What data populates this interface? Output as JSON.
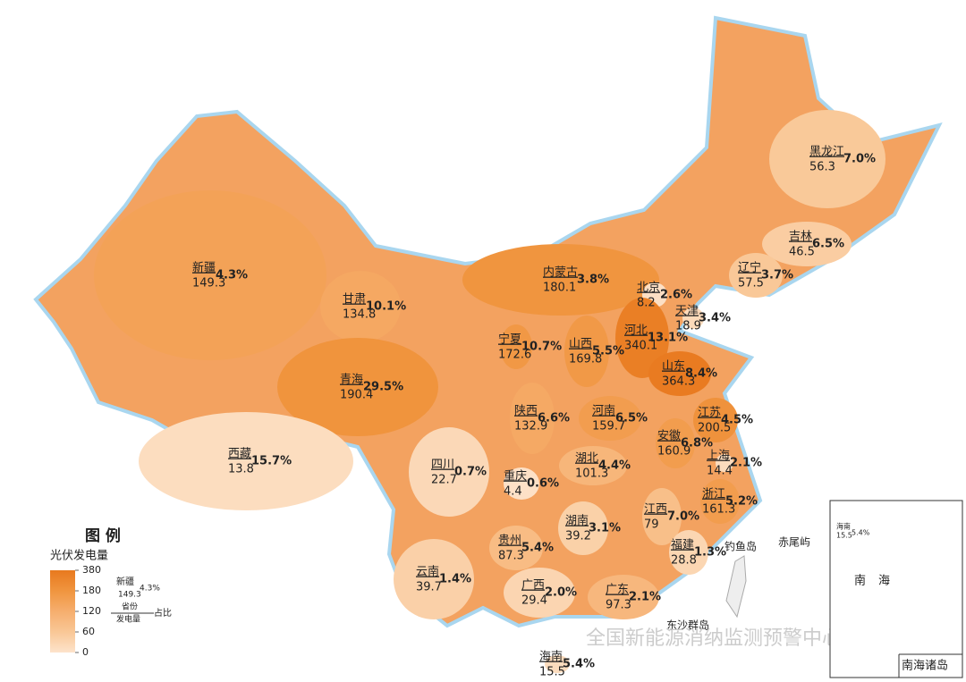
{
  "legend": {
    "heading": "图 例",
    "title": "光伏发电量",
    "ticks": [
      380,
      180,
      120,
      60,
      0
    ],
    "colors": [
      "#e8791e",
      "#f0953f",
      "#f6ae6e",
      "#f9c796",
      "#fde3cb"
    ],
    "example": {
      "name": "新疆",
      "value": 149.3,
      "share": "4.3%",
      "name_caption": "省份",
      "value_caption": "发电量",
      "share_caption": "占比"
    }
  },
  "provinces": [
    {
      "name": "新疆",
      "value": 149.3,
      "share": "4.3%"
    },
    {
      "name": "甘肃",
      "value": 134.8,
      "share": "10.1%"
    },
    {
      "name": "内蒙古",
      "value": 180.1,
      "share": "3.8%"
    },
    {
      "name": "北京",
      "value": 8.2,
      "share": "2.6%"
    },
    {
      "name": "天津",
      "value": 18.9,
      "share": "3.4%"
    },
    {
      "name": "河北",
      "value": 340.1,
      "share": "13.1%"
    },
    {
      "name": "山西",
      "value": 169.8,
      "share": "5.5%"
    },
    {
      "name": "宁夏",
      "value": 172.6,
      "share": "10.7%"
    },
    {
      "name": "青海",
      "value": 190.4,
      "share": "29.5%"
    },
    {
      "name": "山东",
      "value": 364.3,
      "share": "8.4%"
    },
    {
      "name": "陕西",
      "value": 132.9,
      "share": "6.6%"
    },
    {
      "name": "河南",
      "value": 159.7,
      "share": "6.5%"
    },
    {
      "name": "江苏",
      "value": 200.5,
      "share": "4.5%"
    },
    {
      "name": "安徽",
      "value": 160.9,
      "share": "6.8%"
    },
    {
      "name": "西藏",
      "value": 13.8,
      "share": "15.7%"
    },
    {
      "name": "四川",
      "value": 22.7,
      "share": "0.7%"
    },
    {
      "name": "重庆",
      "value": 4.4,
      "share": "0.6%"
    },
    {
      "name": "湖北",
      "value": 101.3,
      "share": "4.4%"
    },
    {
      "name": "上海",
      "value": 14.4,
      "share": "2.1%"
    },
    {
      "name": "浙江",
      "value": 161.3,
      "share": "5.2%"
    },
    {
      "name": "江西",
      "value": 79,
      "share": "7.0%"
    },
    {
      "name": "湖南",
      "value": 39.2,
      "share": "3.1%"
    },
    {
      "name": "贵州",
      "value": 87.3,
      "share": "5.4%"
    },
    {
      "name": "福建",
      "value": 28.8,
      "share": "1.3%"
    },
    {
      "name": "云南",
      "value": 39.7,
      "share": "1.4%"
    },
    {
      "name": "广西",
      "value": 29.4,
      "share": "2.0%"
    },
    {
      "name": "广东",
      "value": 97.3,
      "share": "2.1%"
    },
    {
      "name": "海南",
      "value": 15.5,
      "share": "5.4%"
    },
    {
      "name": "黑龙江",
      "value": 56.3,
      "share": "7.0%"
    },
    {
      "name": "吉林",
      "value": 46.5,
      "share": "6.5%"
    },
    {
      "name": "辽宁",
      "value": 57.5,
      "share": "3.7%"
    }
  ],
  "labels": {
    "diaoyu": "钓鱼岛",
    "chiwei": "赤尾屿",
    "dongsha": "东沙群岛",
    "south_sea": "南海",
    "islands": "南海诸岛"
  },
  "watermark": "全国新能源消纳监测预警中心"
}
